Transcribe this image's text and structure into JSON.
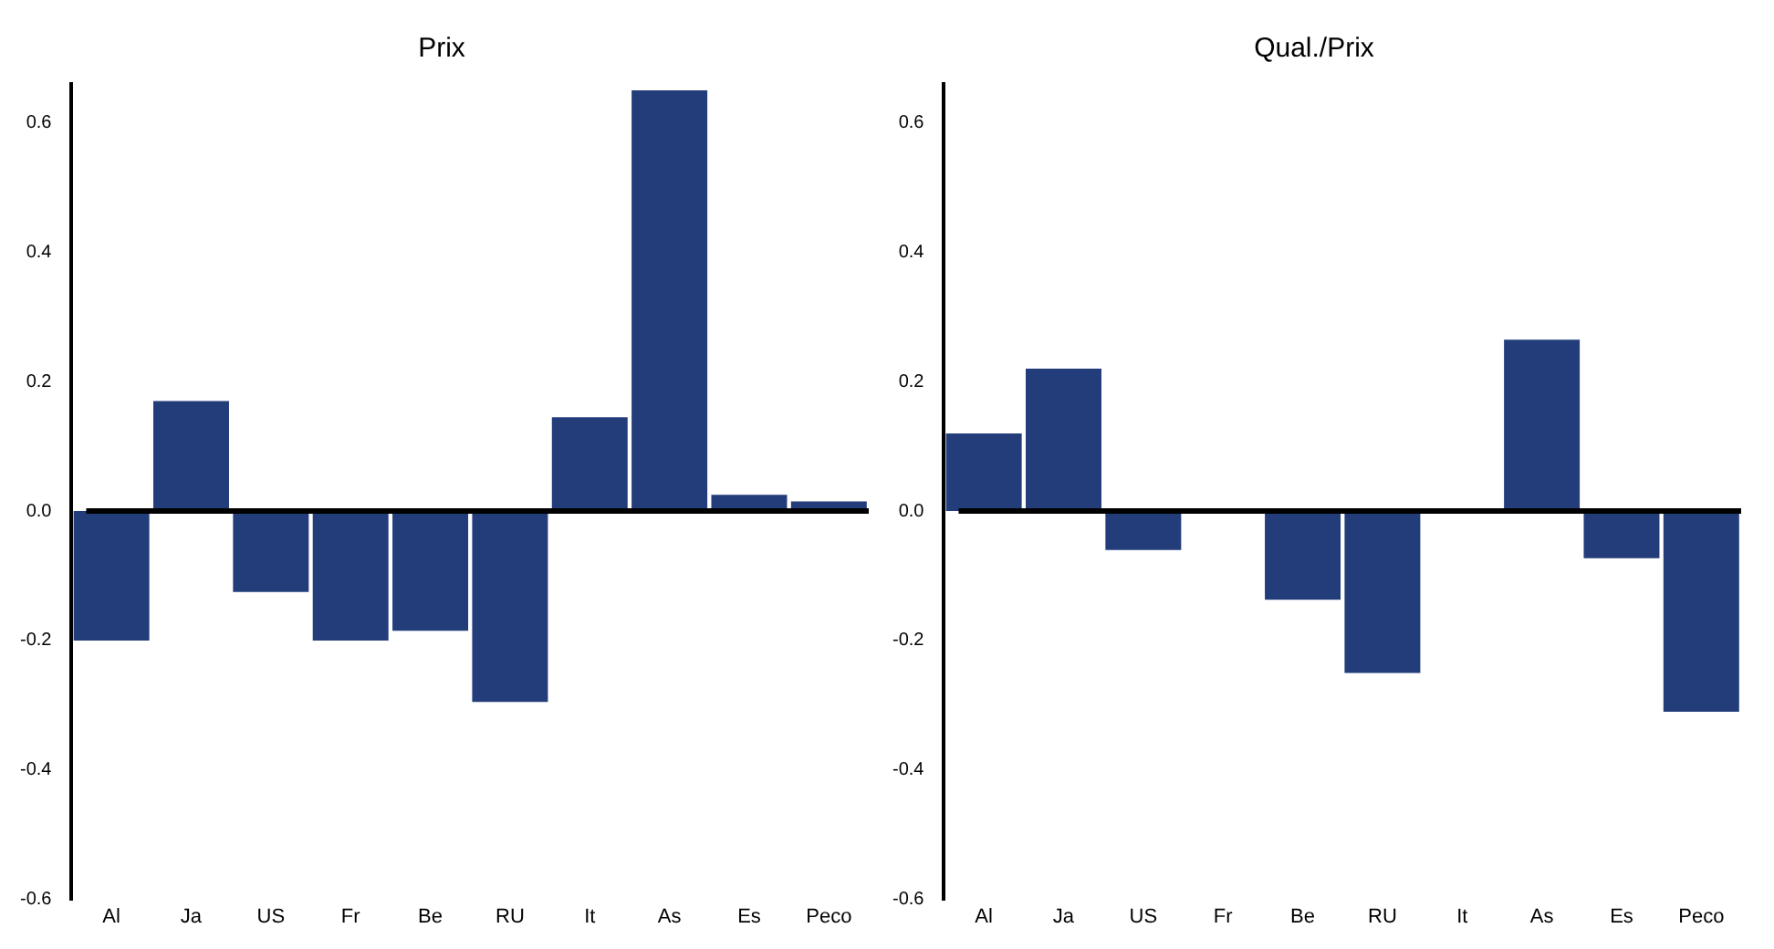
{
  "chart_data": [
    {
      "type": "bar",
      "title": "Prix",
      "categories": [
        "Al",
        "Ja",
        "US",
        "Fr",
        "Be",
        "RU",
        "It",
        "As",
        "Es",
        "Peco"
      ],
      "values": [
        -0.2,
        0.17,
        -0.125,
        -0.2,
        -0.185,
        -0.295,
        0.145,
        0.65,
        0.025,
        0.015
      ],
      "color": "#233d7b",
      "ylim": [
        -0.6,
        0.66
      ],
      "yticks": [
        {
          "value": -0.6,
          "label": "-0.6"
        },
        {
          "value": -0.4,
          "label": "-0.4"
        },
        {
          "value": -0.2,
          "label": "-0.2"
        },
        {
          "value": 0,
          "label": "0.0"
        },
        {
          "value": 0.2,
          "label": "0.2"
        },
        {
          "value": 0.4,
          "label": "0.4"
        },
        {
          "value": 0.6,
          "label": "0.6"
        }
      ],
      "ref_lines": [
        {
          "axis": "y",
          "value": 0,
          "color": "#000000"
        }
      ],
      "grid": false,
      "legend": false
    },
    {
      "type": "bar",
      "title": "Qual./Prix",
      "categories": [
        "Al",
        "Ja",
        "US",
        "Fr",
        "Be",
        "RU",
        "It",
        "As",
        "Es",
        "Peco"
      ],
      "values": [
        0.12,
        0.22,
        -0.06,
        0,
        -0.137,
        -0.25,
        0,
        0.265,
        -0.073,
        -0.31
      ],
      "color": "#233d7b",
      "ylim": [
        -0.6,
        0.66
      ],
      "yticks": [
        {
          "value": -0.6,
          "label": "-0.6"
        },
        {
          "value": -0.4,
          "label": "-0.4"
        },
        {
          "value": -0.2,
          "label": "-0.2"
        },
        {
          "value": 0,
          "label": "0.0"
        },
        {
          "value": 0.2,
          "label": "0.2"
        },
        {
          "value": 0.4,
          "label": "0.4"
        },
        {
          "value": 0.6,
          "label": "0.6"
        }
      ],
      "ref_lines": [
        {
          "axis": "y",
          "value": 0,
          "color": "#000000"
        }
      ],
      "grid": false,
      "legend": false
    }
  ]
}
